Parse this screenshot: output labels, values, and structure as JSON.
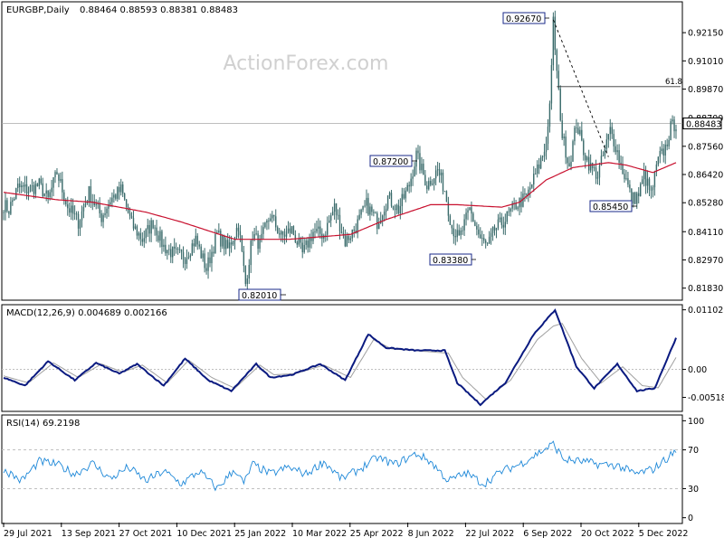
{
  "header": {
    "symbol": "EURGBP,Daily",
    "ohlc": "0.88464 0.88593 0.88381 0.88483"
  },
  "watermark": "ActionForex.com",
  "colors": {
    "candle": "#3a6b6b",
    "ma": "#c8102e",
    "grid": "#c0c0c0",
    "macd": "#0a1a80",
    "signal": "#a0a0a0",
    "rsi": "#1e88d8",
    "label_border": "#1a2a8a",
    "text": "#000000"
  },
  "x_axis": {
    "ticks": [
      "29 Jul 2021",
      "13 Sep 2021",
      "27 Oct 2021",
      "10 Dec 2021",
      "25 Jan 2022",
      "10 Mar 2022",
      "25 Apr 2022",
      "8 Jun 2022",
      "22 Jul 2022",
      "6 Sep 2022",
      "20 Oct 2022",
      "5 Dec 2022"
    ]
  },
  "chart_data": [
    {
      "type": "candlestick",
      "title": "EURGBP,Daily",
      "ylim": [
        0.8138,
        0.9336
      ],
      "y_ticks": [
        "0.92150",
        "0.91010",
        "0.89870",
        "0.88700",
        "0.87560",
        "0.86420",
        "0.85280",
        "0.84110",
        "0.82970",
        "0.81830"
      ],
      "last_price": "0.88483",
      "annotations": [
        {
          "text": "0.92670",
          "value": 0.9267
        },
        {
          "text": "0.87200",
          "value": 0.872
        },
        {
          "text": "0.82010",
          "value": 0.8201
        },
        {
          "text": "0.83380",
          "value": 0.8338
        },
        {
          "text": "0.85450",
          "value": 0.8545
        }
      ],
      "fib_label": "61.8",
      "fib_level": 0.8997,
      "anchors": [
        [
          0,
          0.852
        ],
        [
          3,
          0.85
        ],
        [
          8,
          0.859
        ],
        [
          14,
          0.858
        ],
        [
          20,
          0.86
        ],
        [
          25,
          0.854
        ],
        [
          30,
          0.865
        ],
        [
          36,
          0.851
        ],
        [
          42,
          0.845
        ],
        [
          48,
          0.857
        ],
        [
          55,
          0.847
        ],
        [
          60,
          0.854
        ],
        [
          66,
          0.858
        ],
        [
          72,
          0.844
        ],
        [
          78,
          0.838
        ],
        [
          84,
          0.845
        ],
        [
          90,
          0.835
        ],
        [
          96,
          0.832
        ],
        [
          102,
          0.831
        ],
        [
          108,
          0.838
        ],
        [
          114,
          0.826
        ],
        [
          120,
          0.84
        ],
        [
          126,
          0.834
        ],
        [
          132,
          0.844
        ],
        [
          136,
          0.82
        ],
        [
          140,
          0.84
        ],
        [
          144,
          0.836
        ],
        [
          150,
          0.848
        ],
        [
          156,
          0.839
        ],
        [
          162,
          0.842
        ],
        [
          168,
          0.832
        ],
        [
          174,
          0.841
        ],
        [
          180,
          0.84
        ],
        [
          186,
          0.851
        ],
        [
          192,
          0.837
        ],
        [
          198,
          0.843
        ],
        [
          204,
          0.852
        ],
        [
          210,
          0.845
        ],
        [
          216,
          0.855
        ],
        [
          222,
          0.85
        ],
        [
          228,
          0.86
        ],
        [
          232,
          0.872
        ],
        [
          238,
          0.86
        ],
        [
          244,
          0.866
        ],
        [
          248,
          0.858
        ],
        [
          252,
          0.843
        ],
        [
          256,
          0.838
        ],
        [
          262,
          0.85
        ],
        [
          268,
          0.838
        ],
        [
          272,
          0.835
        ],
        [
          276,
          0.842
        ],
        [
          282,
          0.846
        ],
        [
          288,
          0.852
        ],
        [
          294,
          0.855
        ],
        [
          300,
          0.866
        ],
        [
          304,
          0.874
        ],
        [
          306,
          0.883
        ],
        [
          308,
          0.906
        ],
        [
          309,
          0.926
        ],
        [
          311,
          0.905
        ],
        [
          314,
          0.88
        ],
        [
          318,
          0.868
        ],
        [
          322,
          0.885
        ],
        [
          326,
          0.874
        ],
        [
          330,
          0.867
        ],
        [
          334,
          0.864
        ],
        [
          338,
          0.874
        ],
        [
          341,
          0.882
        ],
        [
          344,
          0.876
        ],
        [
          347,
          0.868
        ],
        [
          350,
          0.862
        ],
        [
          353,
          0.854
        ],
        [
          357,
          0.856
        ],
        [
          360,
          0.864
        ],
        [
          364,
          0.856
        ],
        [
          368,
          0.87
        ],
        [
          372,
          0.875
        ],
        [
          375,
          0.883
        ],
        [
          378,
          0.885
        ]
      ],
      "ma_anchors": [
        [
          0,
          0.857
        ],
        [
          10,
          0.856
        ],
        [
          30,
          0.854
        ],
        [
          50,
          0.853
        ],
        [
          80,
          0.849
        ],
        [
          100,
          0.845
        ],
        [
          130,
          0.838
        ],
        [
          160,
          0.838
        ],
        [
          195,
          0.84
        ],
        [
          215,
          0.846
        ],
        [
          240,
          0.852
        ],
        [
          255,
          0.852
        ],
        [
          280,
          0.851
        ],
        [
          290,
          0.853
        ],
        [
          305,
          0.862
        ],
        [
          320,
          0.867
        ],
        [
          340,
          0.869
        ],
        [
          350,
          0.868
        ],
        [
          365,
          0.865
        ],
        [
          378,
          0.869
        ]
      ]
    },
    {
      "type": "line",
      "title": "MACD(12,26,9) 0.004689 0.002166",
      "ylim": [
        -0.0076,
        0.0118
      ],
      "y_ticks": [
        "0.011023",
        "0.00",
        "-0.005182"
      ],
      "series": [
        {
          "anchors": [
            [
              0,
              -0.0015
            ],
            [
              12,
              -0.003
            ],
            [
              25,
              0.0015
            ],
            [
              40,
              -0.002
            ],
            [
              52,
              0.0012
            ],
            [
              65,
              -0.0008
            ],
            [
              75,
              0.001
            ],
            [
              90,
              -0.003
            ],
            [
              102,
              0.002
            ],
            [
              115,
              -0.002
            ],
            [
              128,
              -0.004
            ],
            [
              142,
              0.001
            ],
            [
              150,
              -0.0015
            ],
            [
              162,
              -0.001
            ],
            [
              178,
              0.001
            ],
            [
              192,
              -0.002
            ],
            [
              205,
              0.0065
            ],
            [
              215,
              0.004
            ],
            [
              232,
              0.0035
            ],
            [
              248,
              0.0035
            ],
            [
              255,
              -0.0025
            ],
            [
              268,
              -0.0065
            ],
            [
              282,
              -0.0025
            ],
            [
              298,
              0.0065
            ],
            [
              306,
              0.0095
            ],
            [
              310,
              0.011
            ],
            [
              322,
              0.0005
            ],
            [
              332,
              -0.0035
            ],
            [
              345,
              0.001
            ],
            [
              356,
              -0.004
            ],
            [
              366,
              -0.0035
            ],
            [
              378,
              0.0058
            ]
          ]
        },
        {
          "anchors": [
            [
              0,
              -0.0012
            ],
            [
              14,
              -0.0025
            ],
            [
              28,
              0.0012
            ],
            [
              42,
              -0.0015
            ],
            [
              55,
              0.001
            ],
            [
              67,
              -0.0005
            ],
            [
              78,
              0.0008
            ],
            [
              92,
              -0.0025
            ],
            [
              104,
              0.0017
            ],
            [
              117,
              -0.0015
            ],
            [
              130,
              -0.0035
            ],
            [
              144,
              0.0008
            ],
            [
              152,
              -0.001
            ],
            [
              164,
              -0.0008
            ],
            [
              180,
              0.0008
            ],
            [
              195,
              -0.0015
            ],
            [
              208,
              0.0055
            ],
            [
              218,
              0.0038
            ],
            [
              234,
              0.0034
            ],
            [
              250,
              0.003
            ],
            [
              258,
              -0.0015
            ],
            [
              271,
              -0.0055
            ],
            [
              285,
              -0.002
            ],
            [
              300,
              0.0055
            ],
            [
              309,
              0.008
            ],
            [
              314,
              0.0085
            ],
            [
              325,
              0.002
            ],
            [
              336,
              -0.0025
            ],
            [
              348,
              0.0005
            ],
            [
              359,
              -0.003
            ],
            [
              368,
              -0.0034
            ],
            [
              378,
              0.0022
            ]
          ]
        }
      ]
    },
    {
      "type": "line",
      "title": "RSI(14) 69.2198",
      "ylim": [
        -5,
        105
      ],
      "y_ticks": [
        "100",
        "70",
        "30",
        "0"
      ],
      "series": [
        {
          "anchors": [
            [
              0,
              50
            ],
            [
              10,
              38
            ],
            [
              20,
              58
            ],
            [
              30,
              55
            ],
            [
              40,
              45
            ],
            [
              50,
              56
            ],
            [
              60,
              40
            ],
            [
              70,
              52
            ],
            [
              80,
              38
            ],
            [
              90,
              48
            ],
            [
              100,
              35
            ],
            [
              110,
              48
            ],
            [
              120,
              30
            ],
            [
              130,
              50
            ],
            [
              135,
              35
            ],
            [
              140,
              55
            ],
            [
              150,
              45
            ],
            [
              160,
              52
            ],
            [
              170,
              45
            ],
            [
              180,
              58
            ],
            [
              190,
              40
            ],
            [
              200,
              50
            ],
            [
              210,
              62
            ],
            [
              220,
              55
            ],
            [
              232,
              66
            ],
            [
              240,
              58
            ],
            [
              250,
              38
            ],
            [
              260,
              46
            ],
            [
              270,
              35
            ],
            [
              280,
              48
            ],
            [
              290,
              55
            ],
            [
              300,
              66
            ],
            [
              309,
              76
            ],
            [
              315,
              60
            ],
            [
              325,
              58
            ],
            [
              335,
              55
            ],
            [
              345,
              54
            ],
            [
              355,
              45
            ],
            [
              365,
              50
            ],
            [
              372,
              60
            ],
            [
              378,
              69
            ]
          ]
        }
      ]
    }
  ]
}
